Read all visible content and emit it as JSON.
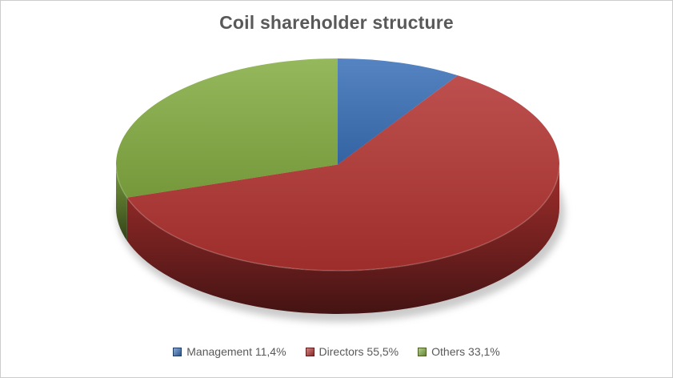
{
  "chart_data": {
    "type": "pie",
    "style": "3d",
    "title": "Coil shareholder structure",
    "legend_position": "bottom",
    "background": "#ffffff",
    "title_color": "#595959",
    "legend_text_color": "#595959",
    "series": [
      {
        "label": "Management",
        "value": 11.4,
        "display": "Management 11,4%",
        "color": "#3a70b8"
      },
      {
        "label": "Directors",
        "value": 55.5,
        "display": "Directors 55,5%",
        "color": "#b23331"
      },
      {
        "label": "Others",
        "value": 33.1,
        "display": "Others 33,1%",
        "color": "#84ad42"
      }
    ]
  }
}
